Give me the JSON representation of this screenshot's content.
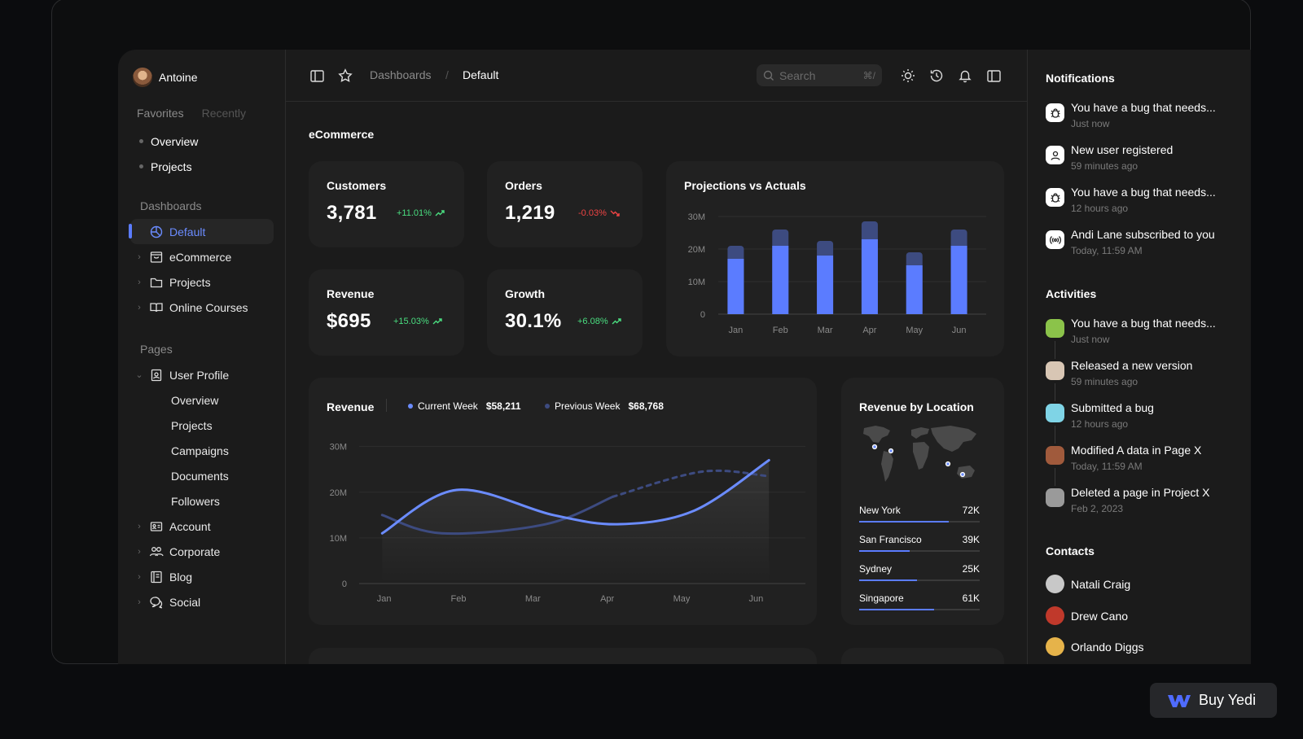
{
  "sidebar": {
    "user_name": "Antoine",
    "fav_tabs": {
      "favorites": "Favorites",
      "recently": "Recently"
    },
    "favorites": [
      "Overview",
      "Projects"
    ],
    "dashboards_title": "Dashboards",
    "dashboards": [
      {
        "label": "Default",
        "icon": "pie-chart-icon"
      },
      {
        "label": "eCommerce",
        "icon": "shopping-bag-icon"
      },
      {
        "label": "Projects",
        "icon": "folder-icon"
      },
      {
        "label": "Online Courses",
        "icon": "book-open-icon"
      }
    ],
    "pages_title": "Pages",
    "user_profile": {
      "label": "User Profile",
      "icon": "id-badge-icon",
      "children": [
        "Overview",
        "Projects",
        "Campaigns",
        "Documents",
        "Followers"
      ]
    },
    "pages": [
      {
        "label": "Account",
        "icon": "id-card-icon"
      },
      {
        "label": "Corporate",
        "icon": "users-icon"
      },
      {
        "label": "Blog",
        "icon": "notebook-icon"
      },
      {
        "label": "Social",
        "icon": "chat-bubbles-icon"
      }
    ]
  },
  "topbar": {
    "breadcrumb": [
      "Dashboards",
      "/",
      "Default"
    ],
    "search_placeholder": "Search",
    "search_shortcut": "⌘/"
  },
  "main": {
    "title": "eCommerce",
    "kpis": [
      {
        "label": "Customers",
        "value": "3,781",
        "change": "+11.01%",
        "trend": "up"
      },
      {
        "label": "Orders",
        "value": "1,219",
        "change": "-0.03%",
        "trend": "down"
      },
      {
        "label": "Revenue",
        "value": "$695",
        "change": "+15.03%",
        "trend": "up"
      },
      {
        "label": "Growth",
        "value": "30.1%",
        "change": "+6.08%",
        "trend": "up"
      }
    ],
    "revenue_card": {
      "title": "Revenue",
      "current_week_label": "Current Week",
      "current_week_value": "$58,211",
      "previous_week_label": "Previous Week",
      "previous_week_value": "$68,768"
    },
    "location_card": {
      "title": "Revenue by Location",
      "locations": [
        {
          "name": "New York",
          "value": "72K",
          "fraction": 0.74
        },
        {
          "name": "San Francisco",
          "value": "39K",
          "fraction": 0.42
        },
        {
          "name": "Sydney",
          "value": "25K",
          "fraction": 0.48
        },
        {
          "name": "Singapore",
          "value": "61K",
          "fraction": 0.62
        }
      ]
    }
  },
  "chart_data": [
    {
      "type": "bar",
      "title": "Projections vs Actuals",
      "categories": [
        "Jan",
        "Feb",
        "Mar",
        "Apr",
        "May",
        "Jun"
      ],
      "series": [
        {
          "name": "Actuals",
          "values": [
            17,
            21,
            18,
            23,
            15,
            21
          ],
          "color": "#5b7cff"
        },
        {
          "name": "Projections",
          "values": [
            21,
            26,
            22.5,
            28.5,
            19,
            26
          ],
          "color": "#3d4b80"
        }
      ],
      "y_ticks": [
        "0",
        "10M",
        "20M",
        "30M"
      ],
      "ylim": [
        0,
        30
      ]
    },
    {
      "type": "line",
      "title": "Revenue",
      "categories": [
        "Jan",
        "Feb",
        "Mar",
        "Apr",
        "May",
        "Jun"
      ],
      "y_ticks": [
        "0",
        "10M",
        "20M",
        "30M"
      ],
      "ylim": [
        0,
        30
      ],
      "series": [
        {
          "name": "Current Week",
          "x": [
            0.2,
            1.2,
            2.5,
            3.4,
            4.4,
            5.4
          ],
          "values": [
            11,
            20.5,
            15,
            13,
            16,
            27
          ],
          "color": "#6b8cff"
        },
        {
          "name": "Previous Week",
          "x": [
            0.2,
            1.0,
            2.4,
            3.3,
            4.5,
            5.4
          ],
          "values": [
            15,
            11,
            13,
            19,
            24.5,
            23.5
          ],
          "color": "#3d4b80"
        }
      ]
    }
  ],
  "right_panel": {
    "notifications_title": "Notifications",
    "notifications": [
      {
        "title": "You have a bug that needs...",
        "time": "Just now",
        "icon": "bug-icon"
      },
      {
        "title": "New user registered",
        "time": "59 minutes ago",
        "icon": "user-icon"
      },
      {
        "title": "You have a bug that needs...",
        "time": "12 hours ago",
        "icon": "bug-icon"
      },
      {
        "title": "Andi Lane subscribed to you",
        "time": "Today, 11:59 AM",
        "icon": "broadcast-icon"
      }
    ],
    "activities_title": "Activities",
    "activities": [
      {
        "title": "You have a bug that needs...",
        "time": "Just now",
        "color": "#8bc34a"
      },
      {
        "title": "Released a new version",
        "time": "59 minutes ago",
        "color": "#d8c6b4"
      },
      {
        "title": "Submitted a bug",
        "time": "12 hours ago",
        "color": "#7fd4e6"
      },
      {
        "title": "Modified A data in Page X",
        "time": "Today, 11:59 AM",
        "color": "#a05a3c"
      },
      {
        "title": "Deleted a page in Project X",
        "time": "Feb 2, 2023",
        "color": "#9a9a9a"
      }
    ],
    "contacts_title": "Contacts",
    "contacts": [
      {
        "name": "Natali Craig",
        "color": "#c8c8c8"
      },
      {
        "name": "Drew Cano",
        "color": "#c0392b"
      },
      {
        "name": "Orlando Diggs",
        "color": "#e6b34a"
      }
    ]
  },
  "buy_button": {
    "label": "Buy Yedi"
  }
}
